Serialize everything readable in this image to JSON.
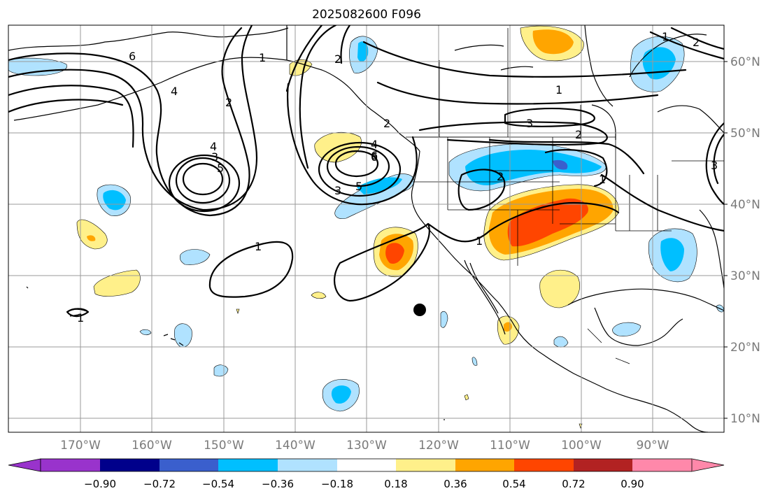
{
  "title": "2025082600 F096",
  "longitude_labels": [
    "170°W",
    "160°W",
    "150°W",
    "140°W",
    "130°W",
    "120°W",
    "110°W",
    "100°W",
    "90°W"
  ],
  "latitude_labels": [
    "60°N",
    "50°N",
    "40°N",
    "30°N",
    "20°N",
    "10°N"
  ],
  "colorbar": {
    "tick_labels": [
      "−0.90",
      "−0.72",
      "−0.54",
      "−0.36",
      "−0.18",
      "0.18",
      "0.36",
      "0.54",
      "0.72",
      "0.90"
    ],
    "colors": [
      "#9933cc",
      "#00008b",
      "#3a5fcd",
      "#00bfff",
      "#b0e2ff",
      "#ffffff",
      "#fff08a",
      "#ffa500",
      "#ff4500",
      "#b22222",
      "#ff88aa"
    ]
  },
  "contour_labels": [
    "6",
    "4",
    "4",
    "2",
    "1",
    "2",
    "3",
    "5",
    "6",
    "2",
    "3",
    "4",
    "5",
    "6",
    "1",
    "2",
    "3",
    "1",
    "1",
    "3",
    "2",
    "2",
    "1",
    "1",
    "1"
  ],
  "marker": "storm-center-dot"
}
